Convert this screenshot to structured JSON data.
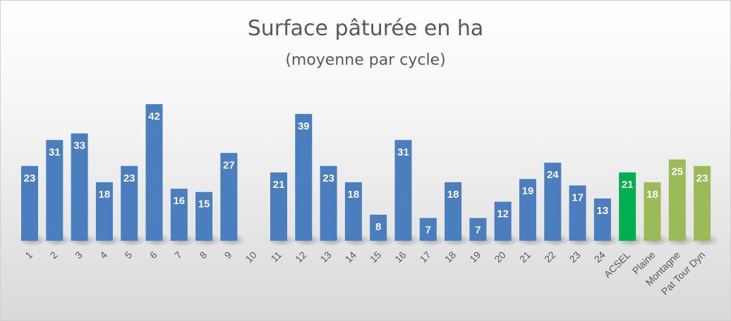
{
  "chart_data": {
    "type": "bar",
    "title": "Surface pâturée en ha",
    "subtitle": "(moyenne par cycle)",
    "categories": [
      "1",
      "2",
      "3",
      "4",
      "5",
      "6",
      "7",
      "8",
      "9",
      "10",
      "11",
      "12",
      "13",
      "14",
      "15",
      "16",
      "17",
      "18",
      "19",
      "20",
      "21",
      "22",
      "23",
      "24",
      "ACSEL",
      "Plaine",
      "Montagne",
      "Pat Tour Dyn"
    ],
    "values": [
      23,
      31,
      33,
      18,
      23,
      42,
      16,
      15,
      27,
      null,
      21,
      39,
      23,
      18,
      8,
      31,
      7,
      18,
      7,
      12,
      19,
      24,
      17,
      13,
      21,
      18,
      25,
      23
    ],
    "bar_colors": [
      "#4a7ebf",
      "#4a7ebf",
      "#4a7ebf",
      "#4a7ebf",
      "#4a7ebf",
      "#4a7ebf",
      "#4a7ebf",
      "#4a7ebf",
      "#4a7ebf",
      "#4a7ebf",
      "#4a7ebf",
      "#4a7ebf",
      "#4a7ebf",
      "#4a7ebf",
      "#4a7ebf",
      "#4a7ebf",
      "#4a7ebf",
      "#4a7ebf",
      "#4a7ebf",
      "#4a7ebf",
      "#4a7ebf",
      "#4a7ebf",
      "#4a7ebf",
      "#4a7ebf",
      "#00b050",
      "#9bbb59",
      "#9bbb59",
      "#9bbb59"
    ],
    "ylim": [
      0,
      42
    ],
    "data_labels": true,
    "grid": false,
    "legend": "none"
  }
}
